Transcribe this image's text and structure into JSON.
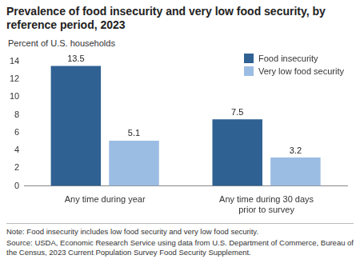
{
  "chart_data": {
    "type": "bar",
    "title": "Prevalence of food insecurity and very low food security, by reference period, 2023",
    "ylabel": "Percent of U.S. households",
    "categories": [
      "Any time during year",
      "Any time during 30 days prior to survey"
    ],
    "series": [
      {
        "name": "Food insecurity",
        "color": "#2f6193",
        "values": [
          13.5,
          7.5
        ]
      },
      {
        "name": "Very low food security",
        "color": "#9cbde3",
        "values": [
          5.1,
          3.2
        ]
      }
    ],
    "ylim": [
      0,
      14
    ],
    "yticks": [
      0,
      2,
      4,
      6,
      8,
      10,
      12,
      14
    ],
    "grid": false,
    "legend": "upper right",
    "data_labels": true,
    "annotations": [
      "Note: Food insecurity includes low food security and very low food security.",
      "Source: USDA, Economic Research Service using data from U.S. Department of Commerce, Bureau of the Census, 2023 Current Population Survey Food Security Supplement."
    ]
  }
}
